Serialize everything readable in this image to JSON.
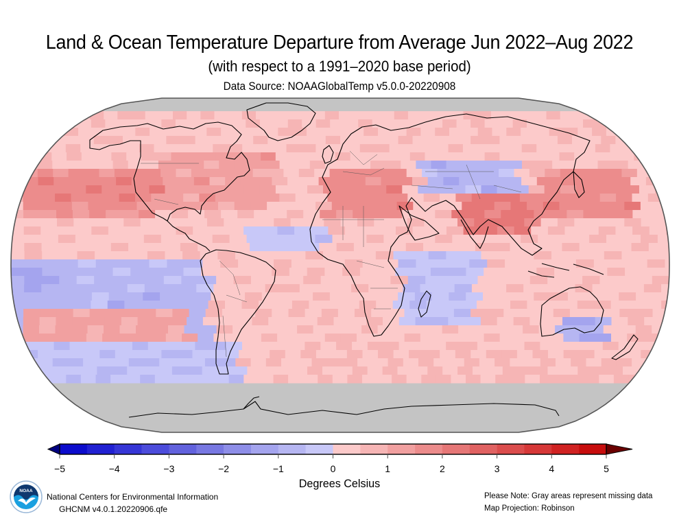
{
  "header": {
    "title": "Land & Ocean Temperature Departure from Average Jun 2022–Aug 2022",
    "subtitle": "(with respect to a 1991–2020 base period)",
    "data_source": "Data Source: NOAAGlobalTemp v5.0.0-20220908"
  },
  "map": {
    "projection_label": "Robinson",
    "missing_color": "#c4c4c4",
    "outline_color": "#555555"
  },
  "colorbar": {
    "units_label": "Degrees Celsius",
    "ticks": [
      "−5",
      "−4",
      "−3",
      "−2",
      "−1",
      "0",
      "1",
      "2",
      "3",
      "4",
      "5"
    ],
    "tick_values": [
      -5,
      -4,
      -3,
      -2,
      -1,
      0,
      1,
      2,
      3,
      4,
      5
    ],
    "bin_width": 0.5,
    "colors": [
      "#0c0ccc",
      "#2121d2",
      "#3636d6",
      "#4c4cdb",
      "#6262dd",
      "#7878e2",
      "#8e8ee8",
      "#a4a4ee",
      "#b6b6f2",
      "#c8c8f8",
      "#fccaca",
      "#f6b5b5",
      "#f1a0a0",
      "#ec8c8c",
      "#e67777",
      "#e06262",
      "#db4d4d",
      "#d63838",
      "#d02222",
      "#c70d0d"
    ],
    "under_color": "#000080",
    "over_color": "#6b0000"
  },
  "footer": {
    "org": "National Centers for Environmental Information",
    "dataset": "GHCNM v4.0.1.20220906.qfe",
    "note": "Please Note: Gray areas represent missing data",
    "projection": "Map Projection: Robinson"
  },
  "logo": {
    "text": "NOAA"
  }
}
